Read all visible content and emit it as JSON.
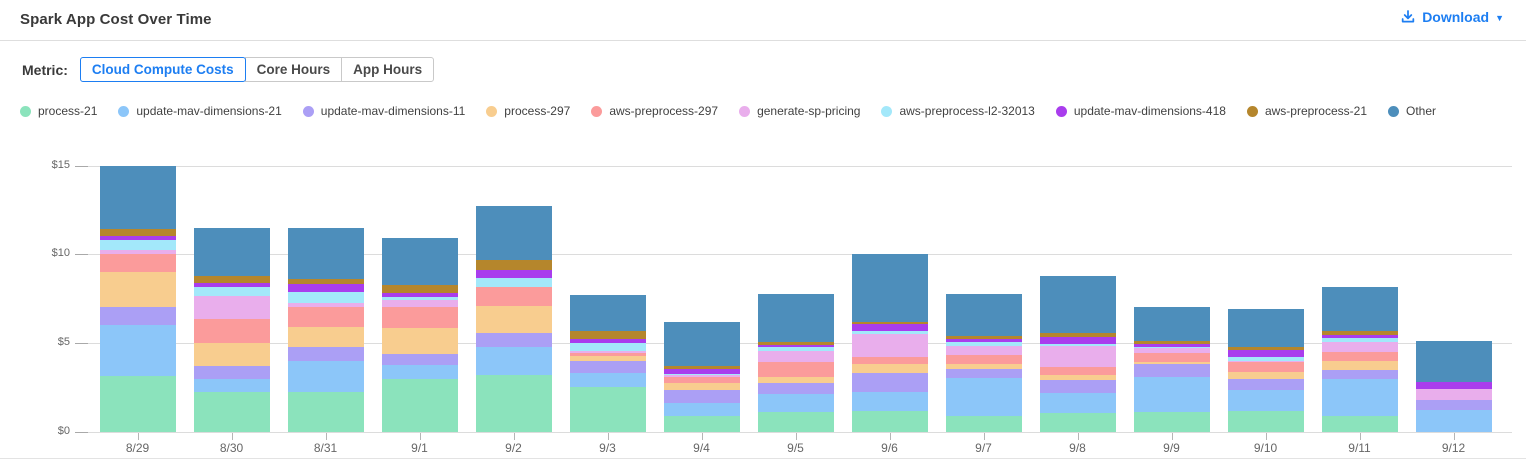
{
  "header": {
    "title": "Spark App Cost Over Time",
    "download_label": "Download"
  },
  "metric": {
    "label": "Metric:",
    "options": [
      {
        "label": "Cloud Compute Costs",
        "selected": true
      },
      {
        "label": "Core Hours",
        "selected": false
      },
      {
        "label": "App Hours",
        "selected": false
      }
    ]
  },
  "colors": {
    "accent_blue": "#1d7ef2",
    "grid": "#dcdcdc",
    "axis_text": "#666666"
  },
  "chart_data": {
    "type": "bar",
    "stacked": true,
    "title": "Spark App Cost Over Time",
    "xlabel": "",
    "ylabel": "Cloud Compute Costs",
    "ylim": [
      0,
      15
    ],
    "yticks": [
      {
        "value": 0,
        "label": "$0"
      },
      {
        "value": 5,
        "label": "$5"
      },
      {
        "value": 10,
        "label": "$10"
      },
      {
        "value": 15,
        "label": "$15"
      }
    ],
    "grid": true,
    "legend_position": "top",
    "categories": [
      "8/29",
      "8/30",
      "8/31",
      "9/1",
      "9/2",
      "9/3",
      "9/4",
      "9/5",
      "9/6",
      "9/7",
      "9/8",
      "9/9",
      "9/10",
      "9/11",
      "9/12"
    ],
    "series": [
      {
        "name": "process-21",
        "color": "#8be3bc",
        "values": [
          3.15,
          2.25,
          2.25,
          2.95,
          3.2,
          2.5,
          0.85,
          1.1,
          1.15,
          0.85,
          1.05,
          1.1,
          1.15,
          0.9,
          0.0
        ]
      },
      {
        "name": "update-mav-dimensions-21",
        "color": "#8cc6f9",
        "values": [
          2.85,
          0.7,
          1.7,
          0.8,
          1.55,
          0.8,
          0.75,
          1.0,
          1.1,
          2.15,
          1.15,
          2.0,
          1.2,
          2.05,
          1.2
        ]
      },
      {
        "name": "update-mav-dimensions-11",
        "color": "#ab9ff5",
        "values": [
          1.0,
          0.75,
          0.8,
          0.6,
          0.8,
          0.7,
          0.75,
          0.65,
          1.05,
          0.5,
          0.7,
          0.7,
          0.6,
          0.5,
          0.6
        ]
      },
      {
        "name": "process-297",
        "color": "#f8cd8f",
        "values": [
          2.0,
          1.3,
          1.15,
          1.5,
          1.55,
          0.25,
          0.4,
          0.3,
          0.5,
          0.3,
          0.3,
          0.1,
          0.4,
          0.5,
          0.0
        ]
      },
      {
        "name": "aws-preprocess-297",
        "color": "#fb9b9b",
        "values": [
          1.0,
          1.35,
          1.15,
          1.2,
          1.05,
          0.2,
          0.3,
          0.9,
          0.4,
          0.5,
          0.45,
          0.55,
          0.55,
          0.55,
          0.0
        ]
      },
      {
        "name": "generate-sp-pricing",
        "color": "#e9aeec",
        "values": [
          0.25,
          1.3,
          0.2,
          0.35,
          0.0,
          0.1,
          0.15,
          0.6,
          1.3,
          0.55,
          1.2,
          0.25,
          0.1,
          0.55,
          0.6
        ]
      },
      {
        "name": "aws-preprocess-l2-32013",
        "color": "#a3e8fa",
        "values": [
          0.55,
          0.5,
          0.6,
          0.2,
          0.5,
          0.45,
          0.05,
          0.2,
          0.15,
          0.2,
          0.1,
          0.05,
          0.2,
          0.25,
          0.0
        ]
      },
      {
        "name": "update-mav-dimensions-418",
        "color": "#a93ded",
        "values": [
          0.25,
          0.2,
          0.5,
          0.2,
          0.45,
          0.2,
          0.3,
          0.15,
          0.4,
          0.15,
          0.4,
          0.2,
          0.4,
          0.15,
          0.4
        ]
      },
      {
        "name": "aws-preprocess-21",
        "color": "#b5862c",
        "values": [
          0.4,
          0.45,
          0.25,
          0.45,
          0.6,
          0.45,
          0.15,
          0.15,
          0.15,
          0.2,
          0.2,
          0.15,
          0.15,
          0.2,
          0.0
        ]
      },
      {
        "name": "Other",
        "color": "#4d8ebb",
        "values": [
          3.55,
          2.7,
          2.9,
          2.65,
          3.0,
          2.05,
          2.5,
          2.7,
          3.8,
          2.35,
          3.2,
          1.9,
          2.15,
          2.5,
          2.3
        ]
      }
    ]
  }
}
